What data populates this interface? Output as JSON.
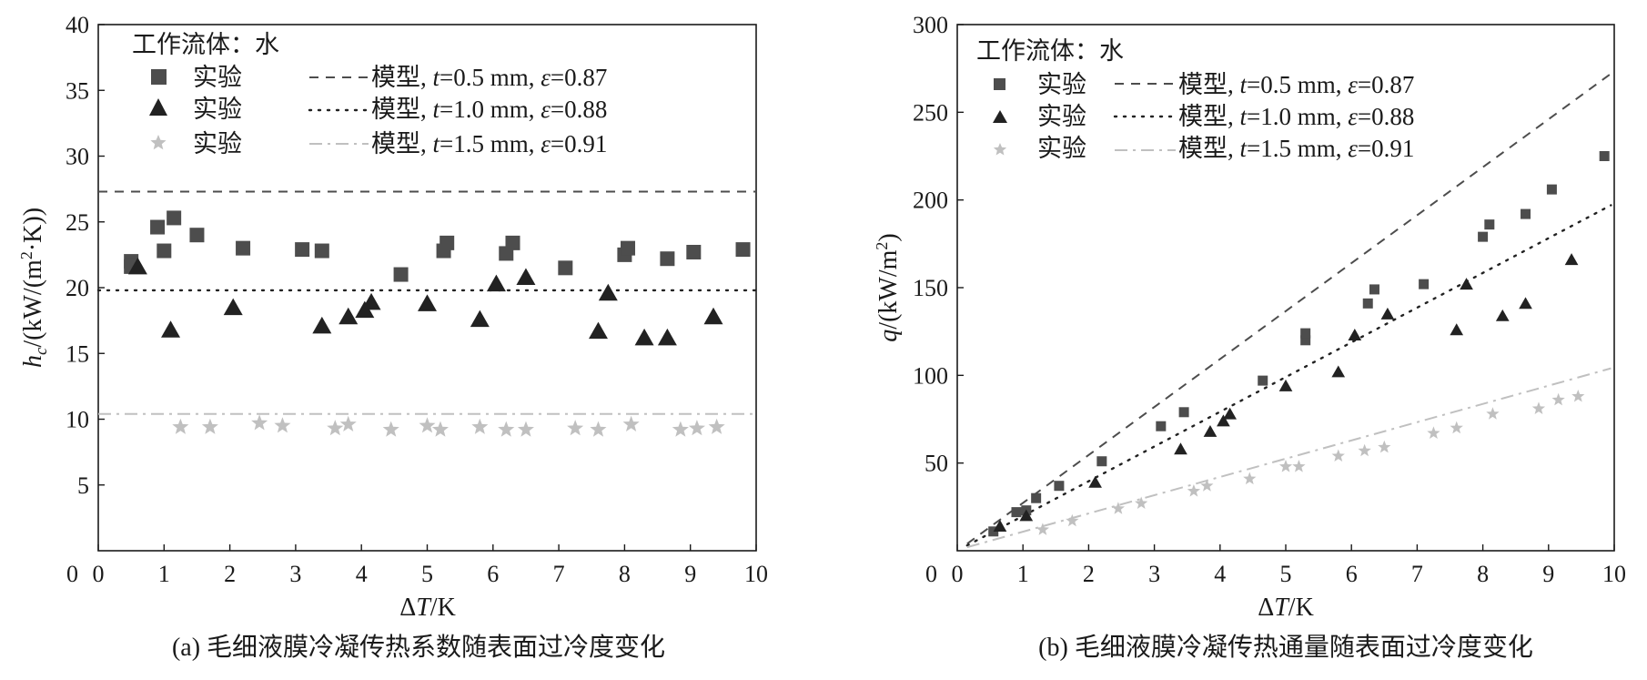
{
  "colors": {
    "square": "#4d4d4d",
    "triangle": "#222222",
    "star": "#c0c0c0",
    "dash": "#4d4d4d",
    "dot": "#222222",
    "dashdot": "#c0c0c0",
    "axis": "#1a1a1a"
  },
  "chart_data": [
    {
      "id": "a",
      "type": "scatter",
      "caption": "(a) 毛细液膜冷凝传热系数随表面过冷度变化",
      "xlabel": "ΔT/K",
      "ylabel": "h_c/(kW/(m²·K))",
      "xlim": [
        0,
        10
      ],
      "ylim": [
        0,
        40
      ],
      "xticks": [
        "0",
        "1",
        "2",
        "3",
        "4",
        "5",
        "6",
        "7",
        "8",
        "9",
        "10"
      ],
      "yticks": [
        "5",
        "10",
        "15",
        "20",
        "25",
        "30",
        "35",
        "40"
      ],
      "legend_title": "工作流体：水",
      "legend_position": "top-left",
      "series": [
        {
          "name": "实验",
          "marker": "square",
          "points": [
            [
              0.5,
              22.0
            ],
            [
              0.5,
              21.6
            ],
            [
              0.9,
              24.6
            ],
            [
              1.0,
              22.8
            ],
            [
              1.15,
              25.3
            ],
            [
              1.5,
              24.0
            ],
            [
              2.2,
              23.0
            ],
            [
              3.1,
              22.9
            ],
            [
              3.4,
              22.8
            ],
            [
              4.6,
              21.0
            ],
            [
              5.25,
              22.8
            ],
            [
              5.3,
              23.4
            ],
            [
              6.2,
              22.6
            ],
            [
              6.3,
              23.4
            ],
            [
              7.1,
              21.5
            ],
            [
              8.0,
              22.5
            ],
            [
              8.05,
              23.0
            ],
            [
              8.65,
              22.2
            ],
            [
              9.05,
              22.7
            ],
            [
              9.8,
              22.9
            ]
          ]
        },
        {
          "name": "实验",
          "marker": "triangle",
          "points": [
            [
              0.6,
              21.6
            ],
            [
              1.1,
              16.8
            ],
            [
              2.05,
              18.5
            ],
            [
              3.4,
              17.1
            ],
            [
              3.8,
              17.8
            ],
            [
              4.05,
              18.3
            ],
            [
              4.15,
              18.9
            ],
            [
              5.0,
              18.8
            ],
            [
              5.8,
              17.6
            ],
            [
              6.05,
              20.3
            ],
            [
              6.5,
              20.8
            ],
            [
              7.6,
              16.7
            ],
            [
              7.75,
              19.6
            ],
            [
              8.3,
              16.2
            ],
            [
              8.65,
              16.2
            ],
            [
              9.35,
              17.8
            ]
          ]
        },
        {
          "name": "实验",
          "marker": "star",
          "points": [
            [
              1.25,
              9.4
            ],
            [
              1.7,
              9.4
            ],
            [
              2.45,
              9.7
            ],
            [
              2.8,
              9.5
            ],
            [
              3.6,
              9.3
            ],
            [
              3.8,
              9.6
            ],
            [
              4.45,
              9.2
            ],
            [
              5.0,
              9.5
            ],
            [
              5.2,
              9.2
            ],
            [
              5.8,
              9.4
            ],
            [
              6.2,
              9.2
            ],
            [
              6.5,
              9.2
            ],
            [
              7.25,
              9.3
            ],
            [
              7.6,
              9.2
            ],
            [
              8.1,
              9.6
            ],
            [
              8.85,
              9.2
            ],
            [
              9.1,
              9.3
            ],
            [
              9.4,
              9.4
            ]
          ]
        }
      ],
      "lines": [
        {
          "name": "模型, t=0.5 mm, ε=0.87",
          "style": "dash",
          "values": [
            [
              0,
              27.3
            ],
            [
              10,
              27.3
            ]
          ]
        },
        {
          "name": "模型, t=1.0 mm, ε=0.88",
          "style": "dot",
          "values": [
            [
              0,
              19.8
            ],
            [
              10,
              19.8
            ]
          ]
        },
        {
          "name": "模型, t=1.5 mm, ε=0.91",
          "style": "dashdot",
          "values": [
            [
              0,
              10.4
            ],
            [
              10,
              10.4
            ]
          ]
        }
      ],
      "legend_rows": [
        {
          "exp": "实验",
          "model_label": "模型,",
          "t_val": "=0.5 mm,",
          "e_val": "=0.87"
        },
        {
          "exp": "实验",
          "model_label": "模型,",
          "t_val": "=1.0 mm,",
          "e_val": "=0.88"
        },
        {
          "exp": "实验",
          "model_label": "模型,",
          "t_val": "=1.5 mm,",
          "e_val": "=0.91"
        }
      ]
    },
    {
      "id": "b",
      "type": "scatter",
      "caption": "(b) 毛细液膜冷凝传热通量随表面过冷度变化",
      "xlabel": "ΔT/K",
      "ylabel": "q/(kW/m²)",
      "xlim": [
        0,
        10
      ],
      "ylim": [
        0,
        300
      ],
      "xticks": [
        "0",
        "1",
        "2",
        "3",
        "4",
        "5",
        "6",
        "7",
        "8",
        "9",
        "10"
      ],
      "yticks": [
        "50",
        "100",
        "150",
        "200",
        "250",
        "300"
      ],
      "legend_title": "工作流体：水",
      "legend_position": "top-left",
      "series": [
        {
          "name": "实验",
          "marker": "square",
          "points": [
            [
              0.55,
              11
            ],
            [
              0.9,
              22
            ],
            [
              1.05,
              23
            ],
            [
              1.2,
              30
            ],
            [
              1.55,
              37
            ],
            [
              2.2,
              51
            ],
            [
              3.1,
              71
            ],
            [
              3.45,
              79
            ],
            [
              4.65,
              97
            ],
            [
              5.3,
              120
            ],
            [
              5.3,
              124
            ],
            [
              6.25,
              141
            ],
            [
              6.35,
              149
            ],
            [
              7.1,
              152
            ],
            [
              8.0,
              179
            ],
            [
              8.1,
              186
            ],
            [
              8.65,
              192
            ],
            [
              9.05,
              206
            ],
            [
              9.85,
              225
            ]
          ]
        },
        {
          "name": "实验",
          "marker": "triangle",
          "points": [
            [
              0.65,
              14
            ],
            [
              1.05,
              20
            ],
            [
              2.1,
              39
            ],
            [
              3.4,
              58
            ],
            [
              3.85,
              68
            ],
            [
              4.05,
              74
            ],
            [
              4.15,
              78
            ],
            [
              5.0,
              94
            ],
            [
              5.8,
              102
            ],
            [
              6.05,
              123
            ],
            [
              6.55,
              135
            ],
            [
              7.6,
              126
            ],
            [
              7.75,
              152
            ],
            [
              8.3,
              134
            ],
            [
              8.65,
              141
            ],
            [
              9.35,
              166
            ]
          ]
        },
        {
          "name": "实验",
          "marker": "star",
          "points": [
            [
              1.3,
              12
            ],
            [
              1.75,
              17
            ],
            [
              2.45,
              24
            ],
            [
              2.8,
              27
            ],
            [
              3.6,
              34
            ],
            [
              3.8,
              37
            ],
            [
              4.45,
              41
            ],
            [
              5.0,
              48
            ],
            [
              5.2,
              48
            ],
            [
              5.8,
              54
            ],
            [
              6.2,
              57
            ],
            [
              6.5,
              59
            ],
            [
              7.25,
              67
            ],
            [
              7.6,
              70
            ],
            [
              8.15,
              78
            ],
            [
              8.85,
              81
            ],
            [
              9.15,
              86
            ],
            [
              9.45,
              88
            ]
          ]
        }
      ],
      "lines": [
        {
          "name": "模型, t=0.5 mm, ε=0.87",
          "style": "dash",
          "values": [
            [
              0.15,
              4
            ],
            [
              9.95,
              272
            ]
          ]
        },
        {
          "name": "模型, t=1.0 mm, ε=0.88",
          "style": "dot",
          "values": [
            [
              0.15,
              3
            ],
            [
              9.95,
              197
            ]
          ]
        },
        {
          "name": "模型, t=1.5 mm, ε=0.91",
          "style": "dashdot",
          "values": [
            [
              0.15,
              2
            ],
            [
              9.95,
              104
            ]
          ]
        }
      ],
      "legend_rows": [
        {
          "exp": "实验",
          "model_label": "模型,",
          "t_val": "=0.5 mm,",
          "e_val": "=0.87"
        },
        {
          "exp": "实验",
          "model_label": "模型,",
          "t_val": "=1.0 mm,",
          "e_val": "=0.88"
        },
        {
          "exp": "实验",
          "model_label": "模型,",
          "t_val": "=1.5 mm,",
          "e_val": "=0.91"
        }
      ]
    }
  ]
}
